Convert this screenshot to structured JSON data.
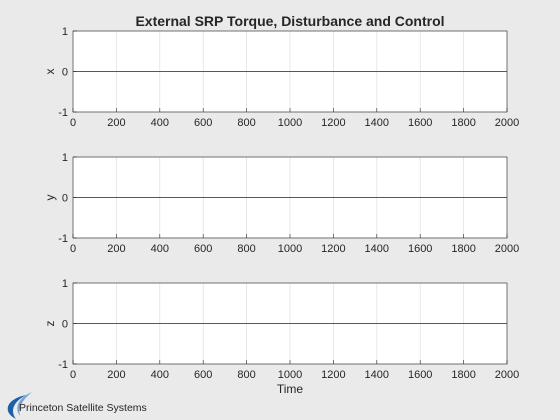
{
  "chart_data": {
    "type": "line",
    "title": "External SRP Torque, Disturbance and Control",
    "xlabel": "Time",
    "x_ticks": [
      "0",
      "200",
      "400",
      "600",
      "800",
      "1000",
      "1200",
      "1400",
      "1600",
      "1800",
      "2000"
    ],
    "xlim": [
      0,
      2000
    ],
    "grid": true,
    "legend": "none",
    "subplots": [
      {
        "ylabel": "x",
        "ylim": [
          -1,
          1
        ],
        "y_ticks": [
          "1",
          "0",
          "-1"
        ],
        "series": [
          {
            "color": "#0072bd",
            "x": [
              0,
              2000
            ],
            "y": [
              0,
              0
            ]
          },
          {
            "color": "#d95319",
            "x": [
              0,
              20
            ],
            "y": [
              0,
              0
            ]
          }
        ]
      },
      {
        "ylabel": "y",
        "ylim": [
          -1,
          1
        ],
        "y_ticks": [
          "1",
          "0",
          "-1"
        ],
        "series": [
          {
            "color": "#0072bd",
            "x": [
              0,
              2000
            ],
            "y": [
              0,
              0
            ]
          },
          {
            "color": "#d95319",
            "x": [
              0,
              20
            ],
            "y": [
              0,
              0
            ]
          }
        ]
      },
      {
        "ylabel": "z",
        "ylim": [
          -1,
          1
        ],
        "y_ticks": [
          "1",
          "0",
          "-1"
        ],
        "series": [
          {
            "color": "#0072bd",
            "x": [
              0,
              2000
            ],
            "y": [
              0,
              0
            ]
          },
          {
            "color": "#d95319",
            "x": [
              0,
              20
            ],
            "y": [
              0,
              0
            ]
          }
        ]
      }
    ]
  },
  "logo": {
    "text": "Princeton Satellite Systems",
    "color": "#1f5fa8"
  },
  "colors": {
    "background": "#eaeaea",
    "axes": "#ffffff",
    "grid": "#dedede",
    "text": "#262626"
  }
}
